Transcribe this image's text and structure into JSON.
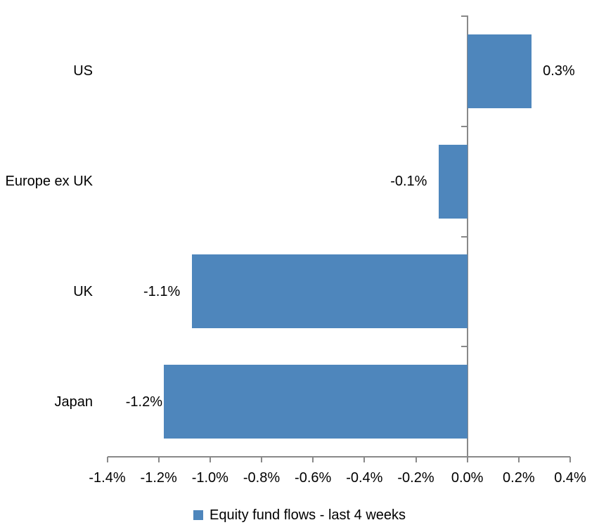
{
  "chart_data": {
    "type": "bar",
    "orientation": "horizontal",
    "title": "",
    "categories": [
      "US",
      "Europe ex UK",
      "UK",
      "Japan"
    ],
    "values": [
      0.3,
      -0.1,
      -1.1,
      -1.2
    ],
    "value_labels": [
      "0.3%",
      "-0.1%",
      "-1.1%",
      "-1.2%"
    ],
    "precise_values": [
      0.25,
      -0.11,
      -1.07,
      -1.18
    ],
    "unit": "%",
    "xlim": [
      -1.4,
      0.4
    ],
    "x_tick_values": [
      -1.4,
      -1.2,
      -1.0,
      -0.8,
      -0.6,
      -0.4,
      -0.2,
      0.0,
      0.2,
      0.4
    ],
    "x_ticks": [
      "-1.4%",
      "-1.2%",
      "-1.0%",
      "-0.8%",
      "-0.6%",
      "-0.4%",
      "-0.2%",
      "0.0%",
      "0.2%",
      "0.4%"
    ],
    "grid": false,
    "legend": [
      "Equity fund flows - last 4 weeks"
    ],
    "legend_position": "bottom",
    "colors": {
      "bar": "#4E86BC",
      "axis": "#898989",
      "text": "#000000",
      "background": "#FFFFFF"
    }
  }
}
